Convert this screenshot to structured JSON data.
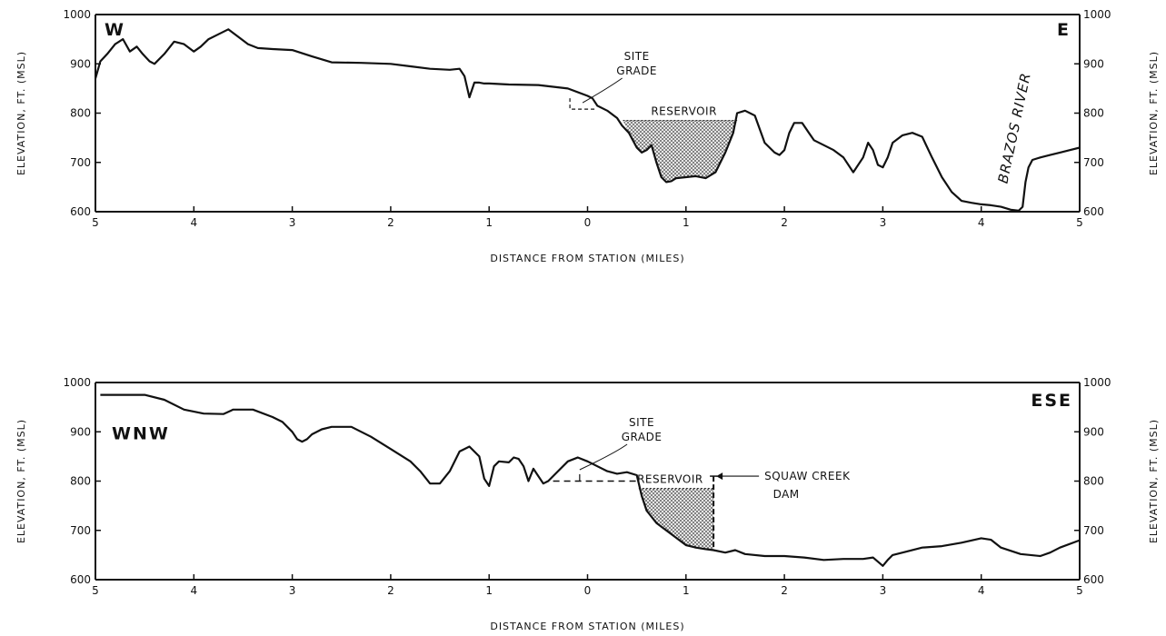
{
  "chart_data": [
    {
      "type": "area",
      "dir_left": "W",
      "dir_right": "E",
      "xlabel": "DISTANCE FROM STATION (MILES)",
      "ylabel_left": "ELEVATION, FT. (MSL)",
      "ylabel_right": "ELEVATION, FT. (MSL)",
      "xlim": [
        -5,
        5
      ],
      "ylim": [
        600,
        1000
      ],
      "x_ticks": [
        -5,
        -4,
        -3,
        -2,
        -1,
        0,
        1,
        2,
        3,
        4,
        5
      ],
      "x_tick_labels": [
        "5",
        "4",
        "3",
        "2",
        "1",
        "0",
        "1",
        "2",
        "3",
        "4",
        "5"
      ],
      "y_ticks": [
        600,
        700,
        800,
        900,
        1000
      ],
      "y_tick_labels": [
        "600",
        "700",
        "800",
        "900",
        "1000"
      ],
      "grid": false,
      "annotations": [
        {
          "kind": "site-grade",
          "text": [
            "SITE",
            "GRADE"
          ],
          "x": -0.05,
          "y": 810
        },
        {
          "kind": "reservoir",
          "text": "RESERVOIR",
          "x": 0.98,
          "y": 785
        },
        {
          "kind": "river",
          "text": "BRAZOS RIVER",
          "x": 4.3,
          "y": 645
        }
      ],
      "reservoir": {
        "elevation": 785,
        "from_x": 0.36,
        "to_x": 1.52
      },
      "site_grade": {
        "elevation": 808
      },
      "series": [
        {
          "values_x": [
            -5.0,
            -4.95,
            -4.88,
            -4.8,
            -4.72,
            -4.65,
            -4.58,
            -4.52,
            -4.45,
            -4.4,
            -4.3,
            -4.2,
            -4.1,
            -4.0,
            -3.93,
            -3.85,
            -3.75,
            -3.65,
            -3.55,
            -3.45,
            -3.35,
            -3.2,
            -3.0,
            -2.8,
            -2.6,
            -2.3,
            -2.0,
            -1.8,
            -1.6,
            -1.4,
            -1.3,
            -1.25,
            -1.2,
            -1.15,
            -1.1,
            -1.05,
            -1.0,
            -0.8,
            -0.5,
            -0.2,
            0.0,
            0.05,
            0.1,
            0.2,
            0.3,
            0.35,
            0.42,
            0.5,
            0.55,
            0.6,
            0.65,
            0.7,
            0.75,
            0.8,
            0.85,
            0.9,
            1.0,
            1.1,
            1.2,
            1.3,
            1.4,
            1.48,
            1.52,
            1.6,
            1.7,
            1.8,
            1.9,
            1.95,
            2.0,
            2.05,
            2.1,
            2.18,
            2.3,
            2.5,
            2.6,
            2.7,
            2.8,
            2.85,
            2.9,
            2.95,
            3.0,
            3.05,
            3.1,
            3.2,
            3.3,
            3.4,
            3.5,
            3.6,
            3.7,
            3.8,
            3.9,
            4.0,
            4.1,
            4.2,
            4.3,
            4.38,
            4.42,
            4.45,
            4.48,
            4.52,
            4.6,
            4.7,
            4.8,
            4.9,
            5.0
          ],
          "values_y": [
            870,
            905,
            920,
            940,
            950,
            925,
            935,
            920,
            905,
            900,
            920,
            945,
            940,
            925,
            935,
            950,
            960,
            970,
            955,
            940,
            932,
            930,
            928,
            915,
            903,
            902,
            900,
            895,
            890,
            888,
            890,
            875,
            832,
            862,
            862,
            860,
            860,
            858,
            857,
            850,
            835,
            830,
            815,
            805,
            790,
            775,
            760,
            730,
            720,
            725,
            735,
            700,
            670,
            660,
            662,
            668,
            670,
            672,
            668,
            680,
            720,
            760,
            800,
            805,
            795,
            740,
            720,
            715,
            725,
            760,
            780,
            780,
            745,
            725,
            710,
            680,
            710,
            740,
            725,
            695,
            690,
            710,
            740,
            755,
            760,
            752,
            710,
            670,
            640,
            622,
            618,
            615,
            613,
            610,
            604,
            602,
            610,
            660,
            690,
            705,
            710,
            715,
            720,
            725,
            730
          ]
        }
      ]
    },
    {
      "type": "area",
      "dir_left": "WNW",
      "dir_right": "ESE",
      "xlabel": "DISTANCE FROM STATION (MILES)",
      "ylabel_left": "ELEVATION, FT. (MSL)",
      "ylabel_right": "ELEVATION, FT. (MSL)",
      "xlim": [
        -5,
        5
      ],
      "ylim": [
        600,
        1000
      ],
      "x_ticks": [
        -5,
        -4,
        -3,
        -2,
        -1,
        0,
        1,
        2,
        3,
        4,
        5
      ],
      "x_tick_labels": [
        "5",
        "4",
        "3",
        "2",
        "1",
        "0",
        "1",
        "2",
        "3",
        "4",
        "5"
      ],
      "y_ticks": [
        600,
        700,
        800,
        900,
        1000
      ],
      "y_tick_labels": [
        "600",
        "700",
        "800",
        "900",
        "1000"
      ],
      "grid": false,
      "annotations": [
        {
          "kind": "site-grade",
          "text": [
            "SITE",
            "GRADE"
          ],
          "x": -0.08,
          "y": 812
        },
        {
          "kind": "reservoir",
          "text": "RESERVOIR",
          "x": 0.47,
          "y": 790
        },
        {
          "kind": "dam",
          "text": [
            "SQUAW CREEK",
            "DAM"
          ],
          "x": 1.28,
          "y": 810
        }
      ],
      "reservoir": {
        "elevation": 785,
        "from_x": 0.52,
        "to_x": 1.28
      },
      "site_grade": {
        "elevation": 800,
        "from_x": -0.35,
        "to_x": 0.52
      },
      "series": [
        {
          "values_x": [
            -4.95,
            -4.8,
            -4.5,
            -4.3,
            -4.1,
            -3.9,
            -3.7,
            -3.6,
            -3.4,
            -3.2,
            -3.1,
            -3.0,
            -2.95,
            -2.9,
            -2.85,
            -2.8,
            -2.7,
            -2.6,
            -2.4,
            -2.2,
            -2.0,
            -1.8,
            -1.7,
            -1.6,
            -1.5,
            -1.4,
            -1.3,
            -1.2,
            -1.1,
            -1.05,
            -1.0,
            -0.95,
            -0.9,
            -0.8,
            -0.75,
            -0.7,
            -0.65,
            -0.6,
            -0.55,
            -0.5,
            -0.45,
            -0.4,
            -0.3,
            -0.2,
            -0.1,
            0.0,
            0.1,
            0.2,
            0.3,
            0.4,
            0.5,
            0.55,
            0.6,
            0.7,
            0.8,
            0.9,
            1.0,
            1.1,
            1.2,
            1.28,
            1.4,
            1.5,
            1.6,
            1.8,
            2.0,
            2.2,
            2.4,
            2.6,
            2.8,
            2.9,
            3.0,
            3.05,
            3.1,
            3.2,
            3.4,
            3.6,
            3.8,
            4.0,
            4.1,
            4.2,
            4.4,
            4.6,
            4.7,
            4.8,
            5.0
          ],
          "values_y": [
            975,
            975,
            975,
            965,
            945,
            937,
            936,
            945,
            945,
            930,
            920,
            900,
            885,
            880,
            885,
            895,
            905,
            910,
            910,
            890,
            865,
            840,
            820,
            795,
            795,
            820,
            860,
            870,
            850,
            805,
            790,
            830,
            840,
            838,
            848,
            845,
            830,
            800,
            825,
            810,
            795,
            800,
            820,
            840,
            848,
            840,
            830,
            820,
            815,
            818,
            812,
            770,
            740,
            715,
            700,
            685,
            670,
            665,
            662,
            660,
            655,
            660,
            652,
            648,
            648,
            645,
            640,
            642,
            642,
            645,
            628,
            640,
            650,
            655,
            665,
            668,
            675,
            684,
            681,
            665,
            652,
            648,
            655,
            665,
            680
          ]
        }
      ]
    }
  ]
}
